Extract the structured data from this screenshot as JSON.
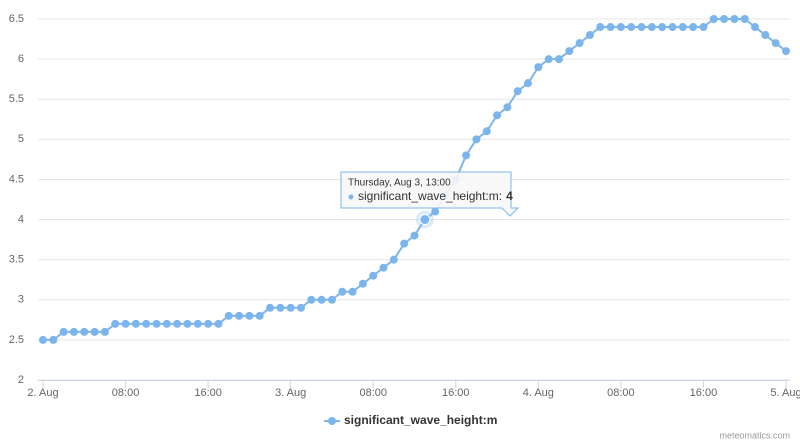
{
  "chart_data": {
    "type": "line",
    "categories": [
      "2. Aug",
      null,
      null,
      null,
      null,
      null,
      null,
      null,
      "08:00",
      null,
      null,
      null,
      null,
      null,
      null,
      null,
      "16:00",
      null,
      null,
      null,
      null,
      null,
      null,
      null,
      "3. Aug",
      null,
      null,
      null,
      null,
      null,
      null,
      null,
      "08:00",
      null,
      null,
      null,
      null,
      null,
      null,
      null,
      "16:00",
      null,
      null,
      null,
      null,
      null,
      null,
      null,
      "4. Aug",
      null,
      null,
      null,
      null,
      null,
      null,
      null,
      "08:00",
      null,
      null,
      null,
      null,
      null,
      null,
      null,
      "16:00",
      null,
      null,
      null,
      null,
      null,
      null,
      null,
      "5. Aug"
    ],
    "series": [
      {
        "name": "significant_wave_height:m",
        "color": "#7cb5ec",
        "values": [
          2.5,
          2.5,
          2.6,
          2.6,
          2.6,
          2.6,
          2.6,
          2.7,
          2.7,
          2.7,
          2.7,
          2.7,
          2.7,
          2.7,
          2.7,
          2.7,
          2.7,
          2.7,
          2.8,
          2.8,
          2.8,
          2.8,
          2.9,
          2.9,
          2.9,
          2.9,
          3.0,
          3.0,
          3.0,
          3.1,
          3.1,
          3.2,
          3.3,
          3.4,
          3.5,
          3.7,
          3.8,
          4,
          4.1,
          4.3,
          4.5,
          4.8,
          5.0,
          5.1,
          5.3,
          5.4,
          5.6,
          5.7,
          5.9,
          6.0,
          6.0,
          6.1,
          6.2,
          6.3,
          6.4,
          6.4,
          6.4,
          6.4,
          6.4,
          6.4,
          6.4,
          6.4,
          6.4,
          6.4,
          6.4,
          6.5,
          6.5,
          6.5,
          6.5,
          6.4,
          6.3,
          6.2,
          6.1
        ]
      }
    ],
    "ylim": [
      2,
      6.5
    ],
    "yticks": [
      2,
      2.5,
      3,
      3.5,
      4,
      4.5,
      5,
      5.5,
      6,
      6.5
    ],
    "grid": true,
    "legend": "bottom",
    "tooltip": {
      "index": 37,
      "header": "Thursday, Aug 3, 13:00",
      "label": "significant_wave_height:m:"
    },
    "credit": "meteomatics.com"
  }
}
